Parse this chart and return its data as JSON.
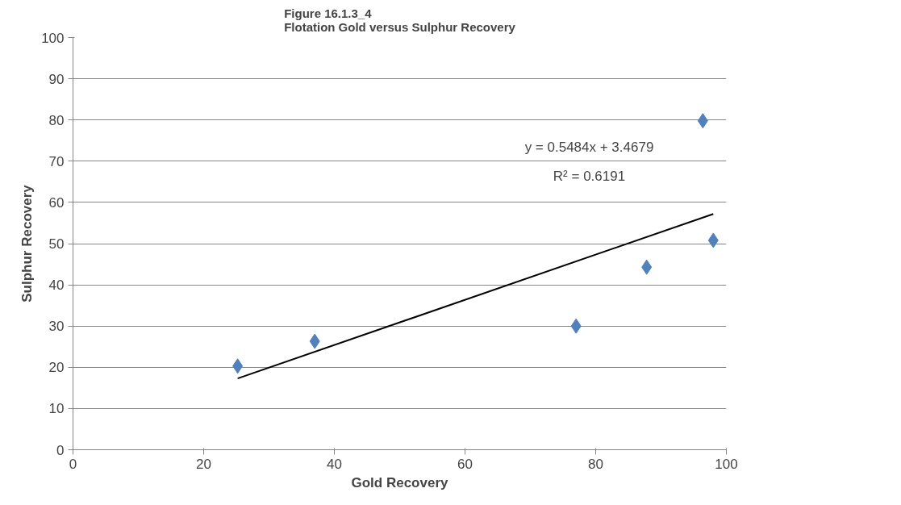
{
  "chart_data": {
    "type": "scatter",
    "title": "Figure 16.1.3_4\nFlotation Gold versus Sulphur Recovery",
    "xlabel": "Gold Recovery",
    "ylabel": "Sulphur Recovery",
    "x": [
      25.2,
      37,
      77,
      87.8,
      96.4,
      98
    ],
    "series": [
      {
        "color": "#4f81bd",
        "values": [
          20.3,
          26.3,
          30,
          44.3,
          79.8,
          50.8
        ],
        "marker": "diamond"
      },
      {
        "type": "line",
        "color": "#000000",
        "x": [
          25.2,
          98
        ],
        "values": [
          17.3,
          57.2
        ]
      }
    ],
    "annotations": [
      "y = 0.5484x + 3.4679",
      "R² = 0.6191"
    ],
    "xlim": [
      0,
      100
    ],
    "ylim": [
      0,
      100
    ],
    "xticks": [
      0,
      20,
      40,
      60,
      80,
      100
    ],
    "yticks": [
      0,
      10,
      20,
      30,
      40,
      50,
      60,
      70,
      80,
      90,
      100
    ],
    "grid": "y"
  }
}
